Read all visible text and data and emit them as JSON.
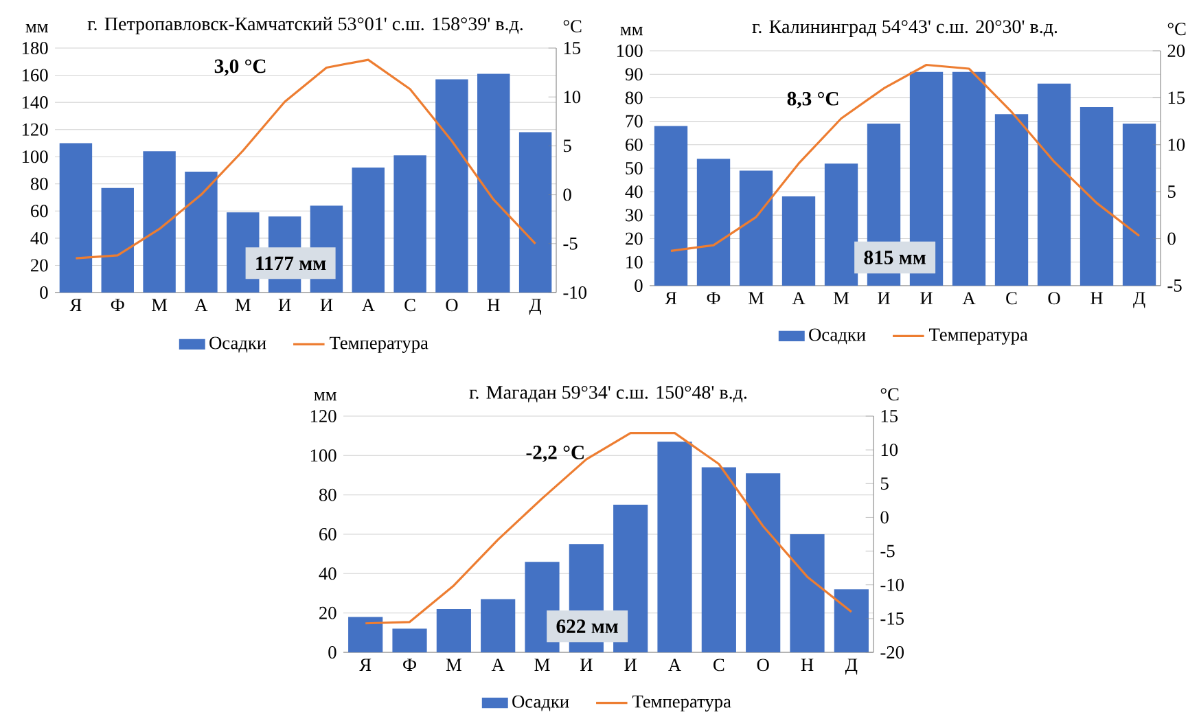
{
  "chart_data": [
    {
      "type": "bar",
      "title": "г. Петропавловск-Камчатский  53°01' с.ш. 158°39' в.д.",
      "ylabel": "мм",
      "y2label": "°C",
      "categories": [
        "Я",
        "Ф",
        "М",
        "А",
        "М",
        "И",
        "И",
        "А",
        "С",
        "О",
        "Н",
        "Д"
      ],
      "series": [
        {
          "name": "Осадки",
          "color": "#4472c4",
          "values": [
            110,
            77,
            104,
            89,
            59,
            56,
            64,
            92,
            101,
            157,
            161,
            118
          ]
        },
        {
          "name": "Температура",
          "type": "line",
          "axis": "y2",
          "color": "#ed7d31",
          "values": [
            -6.5,
            -6.2,
            -3.5,
            0,
            4.5,
            9.5,
            13,
            13.8,
            10.8,
            5.5,
            -0.5,
            -5
          ]
        }
      ],
      "ylim": [
        0,
        180
      ],
      "yticks": [
        0,
        20,
        40,
        60,
        80,
        100,
        120,
        140,
        160,
        180
      ],
      "y2lim": [
        -10,
        15
      ],
      "y2ticks": [
        -10,
        -5,
        0,
        5,
        10,
        15
      ],
      "grid": "y",
      "legend": "bottom",
      "annotations": [
        "3,0 °C",
        "1177 мм"
      ]
    },
    {
      "type": "bar",
      "title": "г. Калининград 54°43' с.ш. 20°30' в.д.",
      "ylabel": "мм",
      "y2label": "°C",
      "categories": [
        "Я",
        "Ф",
        "М",
        "А",
        "М",
        "И",
        "И",
        "А",
        "С",
        "О",
        "Н",
        "Д"
      ],
      "series": [
        {
          "name": "Осадки",
          "color": "#4472c4",
          "values": [
            68,
            54,
            49,
            38,
            52,
            69,
            91,
            91,
            73,
            86,
            76,
            69
          ]
        },
        {
          "name": "Температура",
          "type": "line",
          "axis": "y2",
          "color": "#ed7d31",
          "values": [
            -1.3,
            -0.7,
            2.3,
            8,
            12.8,
            16,
            18.5,
            18.1,
            13.5,
            8.2,
            3.8,
            0.3
          ]
        }
      ],
      "ylim": [
        0,
        100
      ],
      "yticks": [
        0,
        10,
        20,
        30,
        40,
        50,
        60,
        70,
        80,
        90,
        100
      ],
      "y2lim": [
        -5,
        20
      ],
      "y2ticks": [
        -5,
        0,
        5,
        10,
        15,
        20
      ],
      "grid": "y",
      "legend": "bottom",
      "annotations": [
        "8,3 °C",
        "815 мм"
      ]
    },
    {
      "type": "bar",
      "title": "г. Магадан 59°34' с.ш. 150°48' в.д.",
      "ylabel": "мм",
      "y2label": "°C",
      "categories": [
        "Я",
        "Ф",
        "М",
        "А",
        "М",
        "И",
        "И",
        "А",
        "С",
        "О",
        "Н",
        "Д"
      ],
      "series": [
        {
          "name": "Осадки",
          "color": "#4472c4",
          "values": [
            18,
            12,
            22,
            27,
            46,
            55,
            75,
            107,
            94,
            91,
            60,
            32
          ]
        },
        {
          "name": "Температура",
          "type": "line",
          "axis": "y2",
          "color": "#ed7d31",
          "values": [
            -15.7,
            -15.5,
            -10.1,
            -3.3,
            2.8,
            8.6,
            12.5,
            12.5,
            7.9,
            -1.3,
            -8.8,
            -14
          ]
        }
      ],
      "ylim": [
        0,
        120
      ],
      "yticks": [
        0,
        20,
        40,
        60,
        80,
        100,
        120
      ],
      "y2lim": [
        -20,
        15
      ],
      "y2ticks": [
        -20,
        -15,
        -10,
        -5,
        0,
        5,
        10,
        15
      ],
      "grid": "y",
      "legend": "bottom",
      "annotations": [
        "-2,2 °C",
        "622 мм"
      ]
    }
  ]
}
